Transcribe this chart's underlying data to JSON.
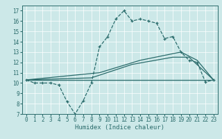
{
  "xlabel": "Humidex (Indice chaleur)",
  "bg_color": "#cce8e8",
  "line_color": "#2a6b6b",
  "xlim": [
    -0.5,
    23.5
  ],
  "ylim": [
    7,
    17.5
  ],
  "yticks": [
    7,
    8,
    9,
    10,
    11,
    12,
    13,
    14,
    15,
    16,
    17
  ],
  "xticks": [
    0,
    1,
    2,
    3,
    4,
    5,
    6,
    7,
    8,
    9,
    10,
    11,
    12,
    13,
    14,
    15,
    16,
    17,
    18,
    19,
    20,
    21,
    22,
    23
  ],
  "line1_x": [
    0,
    1,
    2,
    3,
    4,
    5,
    6,
    7,
    8,
    9,
    10,
    11,
    12,
    13,
    14,
    15,
    16,
    17,
    18,
    19,
    20,
    21,
    22,
    23
  ],
  "line1_y": [
    10.3,
    10.0,
    10.0,
    10.0,
    9.8,
    8.2,
    7.0,
    8.3,
    10.0,
    13.5,
    14.5,
    16.2,
    17.0,
    16.0,
    16.2,
    16.0,
    15.8,
    14.3,
    14.5,
    13.0,
    12.2,
    12.0,
    10.1,
    10.3
  ],
  "line2_x": [
    0,
    23
  ],
  "line2_y": [
    10.3,
    10.3
  ],
  "line3_x": [
    0,
    8,
    13,
    18,
    20,
    23
  ],
  "line3_y": [
    10.3,
    10.5,
    11.8,
    12.5,
    12.5,
    10.3
  ],
  "line4_x": [
    0,
    9,
    14,
    19,
    21,
    23
  ],
  "line4_y": [
    10.3,
    11.0,
    12.2,
    13.0,
    12.2,
    10.3
  ]
}
